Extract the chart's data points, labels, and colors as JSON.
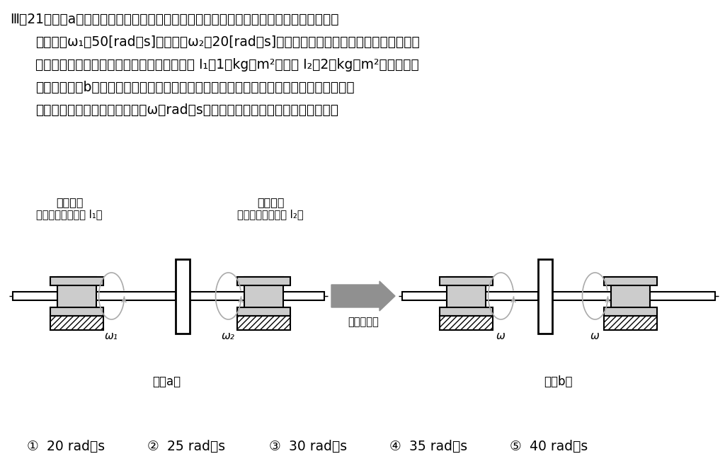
{
  "title_line1": "Ⅲ－21　図（a）に示すように，２つのロータ１及びロータ２が同じ軸まわりにそれぞれ",
  "title_line2": "角速度　ω₁＝50[rad／s]　及び　ω₂＝20[rad／s]で回転している。ロータ１及びロータ２",
  "title_line3": "の回転軸まわりの慣性モーメントはそれぞれ I₁＝1［kg・m²］及び I₂＝2［kg・m²］である。",
  "title_line4": "その後，図（b）に示すように，ロータ１を軸方向に移動させて２つのロータを瞬間的に",
  "title_line5": "一体化した。一体化後の角速度ω［rad／s］として，最も適切なものはどれか。",
  "label_rotor1": "ロータ１",
  "label_rotor1_sub": "（慣性モーメント I₁）",
  "label_rotor2": "ロータ２",
  "label_rotor2_sub": "（慣性モーメント I₂）",
  "label_fig_a": "図（a）",
  "label_fig_b": "図（b）",
  "label_unify": "（一体化）",
  "label_omega1": "ω₁",
  "label_omega2": "ω₂",
  "label_omega_b1": "ω",
  "label_omega_b2": "ω",
  "choices_1": "①",
  "choices_2": "②",
  "choices_3": "③",
  "choices_4": "④",
  "choices_5": "⑤",
  "choice_vals": [
    "20 rad／s",
    "25 rad／s",
    "30 rad／s",
    "35 rad／s",
    "40 rad／s"
  ],
  "bg_color": "#ffffff",
  "text_color": "#000000",
  "line_color": "#000000",
  "gray_arrow": "#909090",
  "disk_gray": "#cccccc",
  "ellipse_color": "#aaaaaa",
  "hatch_angle": "////"
}
